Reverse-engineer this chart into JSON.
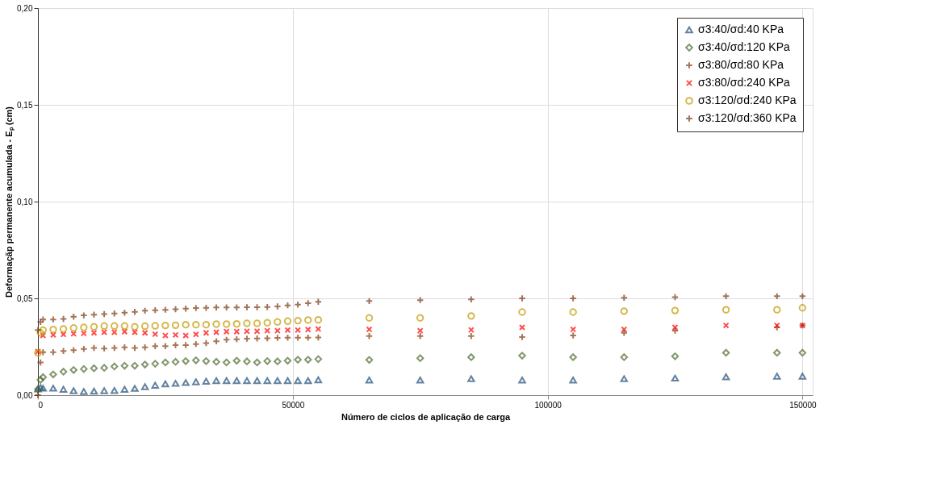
{
  "chart_data": {
    "type": "scatter",
    "xlabel": "Número de ciclos de aplicação de carga",
    "ylabel": "Deformaçãp permanente acumulada - Eₚ (cm)",
    "x": [
      0,
      500,
      1000,
      3000,
      5000,
      7000,
      9000,
      11000,
      13000,
      15000,
      17000,
      19000,
      21000,
      23000,
      25000,
      27000,
      29000,
      31000,
      33000,
      35000,
      37000,
      39000,
      41000,
      43000,
      45000,
      47000,
      49000,
      51000,
      53000,
      55000,
      65000,
      75000,
      85000,
      95000,
      105000,
      115000,
      125000,
      135000,
      145000,
      150000
    ],
    "series": [
      {
        "name": "σ3:40/σd:40 KPa",
        "color": "#1f4e79",
        "marker": "triangle",
        "values": [
          0.0032,
          0.004,
          0.0036,
          0.0036,
          0.003,
          0.0023,
          0.0019,
          0.0021,
          0.0023,
          0.0024,
          0.003,
          0.0035,
          0.0044,
          0.0051,
          0.0058,
          0.0061,
          0.0065,
          0.0069,
          0.0072,
          0.0075,
          0.0075,
          0.0075,
          0.0075,
          0.0075,
          0.0075,
          0.0075,
          0.0075,
          0.0075,
          0.0075,
          0.0079,
          0.0078,
          0.0078,
          0.0085,
          0.0078,
          0.0078,
          0.0085,
          0.0088,
          0.0095,
          0.0098,
          0.0098
        ]
      },
      {
        "name": "σ3:40/σd:120 KPa",
        "color": "#4e6b2e",
        "marker": "diamond",
        "values": [
          0.003,
          0.0079,
          0.0093,
          0.0107,
          0.0121,
          0.013,
          0.0135,
          0.0139,
          0.0141,
          0.0148,
          0.0152,
          0.0152,
          0.0158,
          0.0162,
          0.0169,
          0.0172,
          0.0176,
          0.018,
          0.0176,
          0.0172,
          0.0169,
          0.0178,
          0.0174,
          0.0169,
          0.0176,
          0.0174,
          0.0178,
          0.0183,
          0.0183,
          0.0186,
          0.0182,
          0.0191,
          0.0196,
          0.0204,
          0.0196,
          0.0196,
          0.0201,
          0.0219,
          0.0219,
          0.0219
        ]
      },
      {
        "name": "σ3:80/σd:80 KPa",
        "color": "#843c0c",
        "marker": "cross",
        "values": [
          0.0,
          0.0169,
          0.0222,
          0.0222,
          0.0228,
          0.0232,
          0.0239,
          0.0244,
          0.0241,
          0.0244,
          0.0247,
          0.0244,
          0.0247,
          0.0253,
          0.0253,
          0.0258,
          0.0258,
          0.0264,
          0.0269,
          0.0278,
          0.0286,
          0.0289,
          0.0292,
          0.0293,
          0.0294,
          0.0296,
          0.0297,
          0.0297,
          0.0297,
          0.0298,
          0.0305,
          0.0305,
          0.0305,
          0.03,
          0.0308,
          0.0322,
          0.0333,
          null,
          0.035,
          0.036
        ]
      },
      {
        "name": "σ3:80/σd:240 KPa",
        "color": "#ff0000",
        "marker": "x",
        "values": [
          0.0225,
          null,
          0.0308,
          0.0311,
          0.0314,
          0.0317,
          0.0319,
          0.0322,
          0.0325,
          0.0325,
          0.0328,
          0.0325,
          0.0322,
          0.0315,
          0.0308,
          0.0311,
          0.0308,
          0.0314,
          0.0322,
          0.0325,
          0.0328,
          0.0328,
          0.033,
          0.033,
          0.0333,
          0.0333,
          0.0336,
          0.0336,
          0.0339,
          0.0342,
          0.034,
          0.0333,
          0.0337,
          0.035,
          0.034,
          0.034,
          0.035,
          0.036,
          0.036,
          0.036
        ]
      },
      {
        "name": "σ3:120/σd:240 KPa",
        "color": "#c49a00",
        "marker": "circle",
        "values": [
          0.0218,
          0.0322,
          0.0336,
          0.0339,
          0.0342,
          0.0347,
          0.035,
          0.0353,
          0.0357,
          0.0357,
          0.0357,
          0.0353,
          0.0356,
          0.0358,
          0.036,
          0.0361,
          0.0364,
          0.0364,
          0.0364,
          0.0367,
          0.0367,
          0.0368,
          0.0371,
          0.0371,
          0.0374,
          0.0378,
          0.0382,
          0.0385,
          0.0388,
          0.0389,
          0.0399,
          0.0399,
          0.0409,
          0.0429,
          0.0429,
          0.0434,
          0.0437,
          0.0441,
          0.0441,
          0.0451
        ]
      },
      {
        "name": "σ3:120/σd:360 KPa",
        "color": "#7a3a12",
        "marker": "cross",
        "values": [
          0.0336,
          0.0378,
          0.0391,
          0.0391,
          0.0394,
          0.0405,
          0.0412,
          0.0416,
          0.0419,
          0.0422,
          0.0426,
          0.043,
          0.0436,
          0.0439,
          0.0441,
          0.0444,
          0.0447,
          0.045,
          0.0451,
          0.0453,
          0.0453,
          0.0453,
          0.0454,
          0.0454,
          0.0455,
          0.0458,
          0.0464,
          0.0468,
          0.0475,
          0.0482,
          0.0486,
          0.0491,
          0.0495,
          0.05,
          0.05,
          0.0503,
          0.0506,
          0.0511,
          0.0511,
          0.0511
        ]
      }
    ],
    "xlim": [
      0,
      152000
    ],
    "xticks": [
      0,
      50000,
      100000,
      150000
    ],
    "ylim": [
      0,
      0.2
    ],
    "yticks": [
      {
        "value": 0,
        "label": "0,00"
      },
      {
        "value": 0.05,
        "label": "0,05"
      },
      {
        "value": 0.1,
        "label": "0,10"
      },
      {
        "value": 0.15,
        "label": "0,15"
      },
      {
        "value": 0.2,
        "label": "0,20"
      }
    ],
    "grid": true,
    "legend": "top right"
  }
}
